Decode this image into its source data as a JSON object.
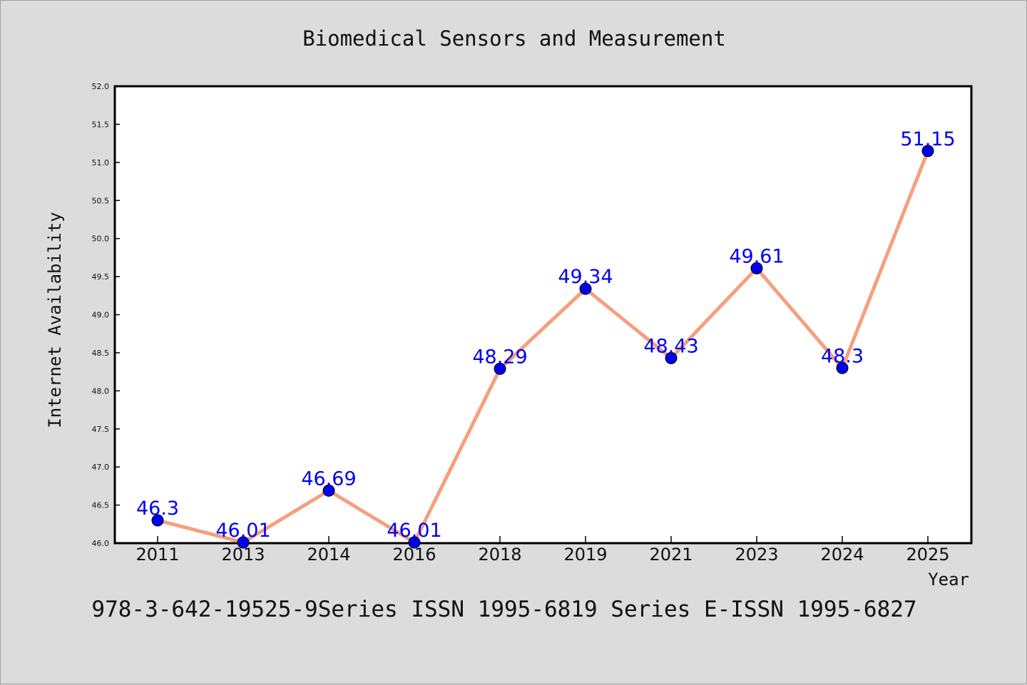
{
  "chart_data": {
    "type": "line",
    "title": "Biomedical Sensors and Measurement",
    "xlabel": "Year",
    "ylabel": "Internet Availability",
    "caption": "978-3-642-19525-9Series ISSN 1995-6819 Series E-ISSN 1995-6827",
    "categories": [
      "2011",
      "2013",
      "2014",
      "2016",
      "2018",
      "2019",
      "2021",
      "2023",
      "2024",
      "2025"
    ],
    "series": [
      {
        "values": [
          46.3,
          46.01,
          46.69,
          46.01,
          48.29,
          49.34,
          48.43,
          49.61,
          48.3,
          51.15
        ],
        "labels": [
          "46.3",
          "46.01",
          "46.69",
          "46.01",
          "48.29",
          "49.34",
          "48.43",
          "49.61",
          "48.3",
          "51.15"
        ]
      }
    ],
    "ylim": [
      46.0,
      52.0
    ],
    "yticks": [
      "46.0",
      "46.5",
      "47.0",
      "47.5",
      "48.0",
      "48.5",
      "49.0",
      "49.5",
      "50.0",
      "50.5",
      "51.0",
      "51.5",
      "52.0"
    ],
    "grid": false,
    "colors": {
      "line": "#f4a07e",
      "marker": "#0000ee",
      "label": "#0000ee",
      "background": "#dcdcdc",
      "plot": "#ffffff"
    }
  }
}
